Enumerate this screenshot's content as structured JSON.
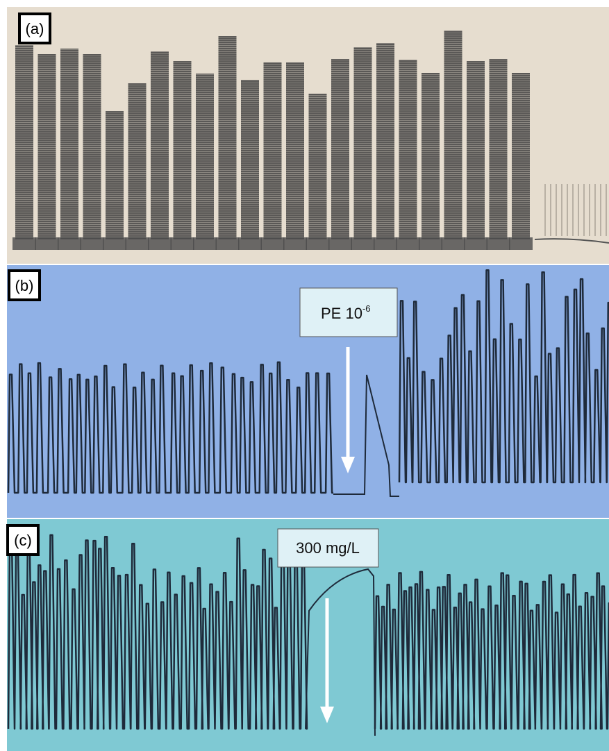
{
  "panels": [
    {
      "label": "(a)"
    },
    {
      "label": "(b)",
      "annotation": {
        "text": "PE 10",
        "superscript": "-6"
      }
    },
    {
      "label": "(c)",
      "annotation": {
        "text": "300 mg/L"
      }
    }
  ]
}
